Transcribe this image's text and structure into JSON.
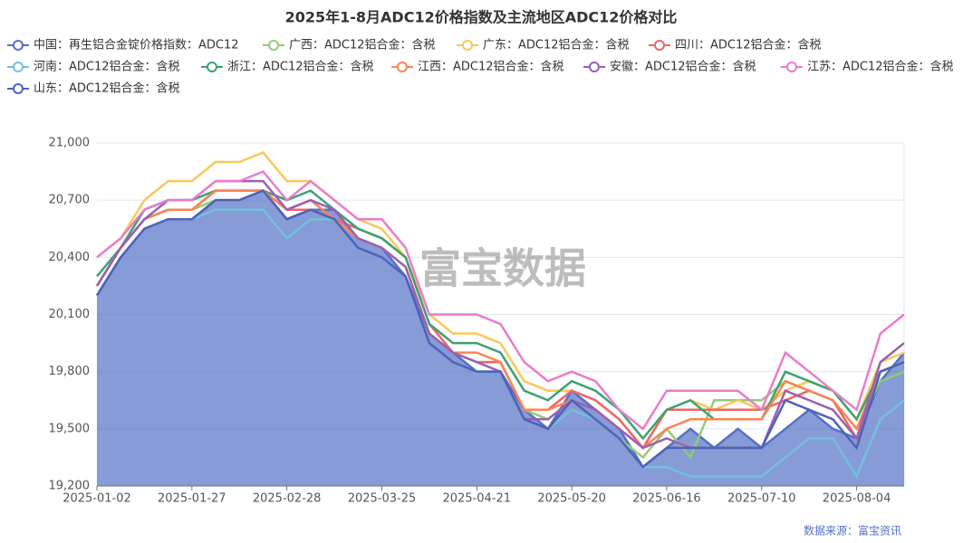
{
  "chart_data": {
    "type": "line",
    "title": "2025年1-8月ADC12价格指数及主流地区ADC12价格对比",
    "source": "数据来源：富宝资讯",
    "watermark": "富宝数据",
    "categories": [
      "2025-01-02",
      null,
      null,
      null,
      "2025-01-27",
      null,
      null,
      null,
      "2025-02-28",
      null,
      null,
      null,
      "2025-03-25",
      null,
      null,
      null,
      "2025-04-21",
      null,
      null,
      null,
      "2025-05-20",
      null,
      null,
      null,
      "2025-06-16",
      null,
      null,
      null,
      "2025-07-10",
      null,
      null,
      null,
      "2025-08-04",
      null,
      null
    ],
    "ylim": [
      19200,
      21000
    ],
    "yticks": [
      {
        "value": 19200,
        "label": "19,200"
      },
      {
        "value": 19500,
        "label": "19,500"
      },
      {
        "value": 19800,
        "label": "19,800"
      },
      {
        "value": 20100,
        "label": "20,100"
      },
      {
        "value": 20400,
        "label": "20,400"
      },
      {
        "value": 20700,
        "label": "20,700"
      },
      {
        "value": 21000,
        "label": "21,000"
      }
    ],
    "grid": true,
    "legend": "top",
    "series": [
      {
        "name": "中国：再生铝合金锭价格指数：ADC12",
        "color": "#5470c6",
        "area": true,
        "values": [
          20200,
          20400,
          20550,
          20600,
          20600,
          20700,
          20700,
          20750,
          20600,
          20650,
          20650,
          20500,
          20450,
          20300,
          20000,
          19900,
          19800,
          19800,
          19600,
          19500,
          19700,
          19600,
          19500,
          19300,
          19400,
          19500,
          19400,
          19500,
          19400,
          19500,
          19600,
          19500,
          19450,
          19750,
          19900
        ]
      },
      {
        "name": "广西：ADC12铝合金：含税",
        "color": "#91cc75",
        "values": [
          20250,
          20450,
          20600,
          20650,
          20650,
          20700,
          20700,
          20750,
          20650,
          20650,
          20600,
          20500,
          20450,
          20350,
          20000,
          19900,
          19850,
          19850,
          19600,
          19550,
          19650,
          19550,
          19450,
          19350,
          19500,
          19350,
          19650,
          19650,
          19650,
          19750,
          19700,
          19650,
          19500,
          19750,
          19800
        ]
      },
      {
        "name": "广东：ADC12铝合金：含税",
        "color": "#fac858",
        "values": [
          20400,
          20500,
          20700,
          20800,
          20800,
          20900,
          20900,
          20950,
          20800,
          20800,
          20700,
          20600,
          20550,
          20400,
          20100,
          20000,
          20000,
          19950,
          19750,
          19700,
          19700,
          19650,
          19550,
          19400,
          19600,
          19650,
          19600,
          19650,
          19600,
          19700,
          19750,
          19700,
          19550,
          19850,
          19900
        ]
      },
      {
        "name": "四川：ADC12铝合金：含税",
        "color": "#ee6666",
        "values": [
          20250,
          20450,
          20600,
          20650,
          20650,
          20750,
          20750,
          20750,
          20650,
          20650,
          20600,
          20550,
          20500,
          20400,
          20050,
          19900,
          19850,
          19850,
          19600,
          19600,
          19700,
          19650,
          19550,
          19400,
          19600,
          19600,
          19600,
          19600,
          19600,
          19650,
          19700,
          19650,
          19450,
          19800,
          19850
        ]
      },
      {
        "name": "河南：ADC12铝合金：含税",
        "color": "#73c0de",
        "values": [
          20200,
          20400,
          20550,
          20600,
          20600,
          20650,
          20650,
          20650,
          20500,
          20600,
          20600,
          20450,
          20400,
          20300,
          19950,
          19850,
          19800,
          19800,
          19550,
          19500,
          19600,
          19550,
          19450,
          19300,
          19300,
          19250,
          19250,
          19250,
          19250,
          19350,
          19450,
          19450,
          19250,
          19550,
          19650
        ]
      },
      {
        "name": "浙江：ADC12铝合金：含税",
        "color": "#3ba272",
        "values": [
          20300,
          20450,
          20650,
          20700,
          20700,
          20750,
          20750,
          20750,
          20700,
          20750,
          20650,
          20550,
          20500,
          20400,
          20050,
          19950,
          19950,
          19900,
          19700,
          19650,
          19750,
          19700,
          19600,
          19450,
          19600,
          19650,
          19550,
          19550,
          19550,
          19800,
          19750,
          19700,
          19550,
          19800,
          19850
        ]
      },
      {
        "name": "江西：ADC12铝合金：含税",
        "color": "#fc8452",
        "values": [
          20250,
          20450,
          20600,
          20650,
          20650,
          20750,
          20750,
          20750,
          20650,
          20700,
          20600,
          20500,
          20450,
          20350,
          20000,
          19900,
          19900,
          19850,
          19600,
          19600,
          19650,
          19600,
          19500,
          19400,
          19500,
          19550,
          19550,
          19550,
          19550,
          19750,
          19700,
          19650,
          19500,
          19800,
          19850
        ]
      },
      {
        "name": "安徽：ADC12铝合金：含税",
        "color": "#9a60b4",
        "values": [
          20250,
          20450,
          20600,
          20700,
          20700,
          20800,
          20800,
          20800,
          20650,
          20700,
          20650,
          20500,
          20450,
          20350,
          20000,
          19900,
          19850,
          19800,
          19550,
          19550,
          19650,
          19600,
          19500,
          19400,
          19450,
          19400,
          19400,
          19400,
          19400,
          19700,
          19650,
          19600,
          19450,
          19850,
          19950
        ]
      },
      {
        "name": "江苏：ADC12铝合金：含税",
        "color": "#ea7ccc",
        "values": [
          20400,
          20500,
          20650,
          20700,
          20700,
          20800,
          20800,
          20850,
          20700,
          20800,
          20700,
          20600,
          20600,
          20450,
          20100,
          20100,
          20100,
          20050,
          19850,
          19750,
          19800,
          19750,
          19600,
          19500,
          19700,
          19700,
          19700,
          19700,
          19600,
          19900,
          19800,
          19700,
          19600,
          20000,
          20100
        ]
      },
      {
        "name": "山东：ADC12铝合金：含税",
        "color": "#4e62b8",
        "values": [
          20200,
          20400,
          20550,
          20600,
          20600,
          20700,
          20700,
          20750,
          20600,
          20650,
          20600,
          20450,
          20400,
          20300,
          19950,
          19850,
          19800,
          19800,
          19550,
          19500,
          19650,
          19550,
          19450,
          19300,
          19400,
          19400,
          19400,
          19400,
          19400,
          19650,
          19600,
          19550,
          19400,
          19800,
          19850
        ]
      }
    ]
  }
}
